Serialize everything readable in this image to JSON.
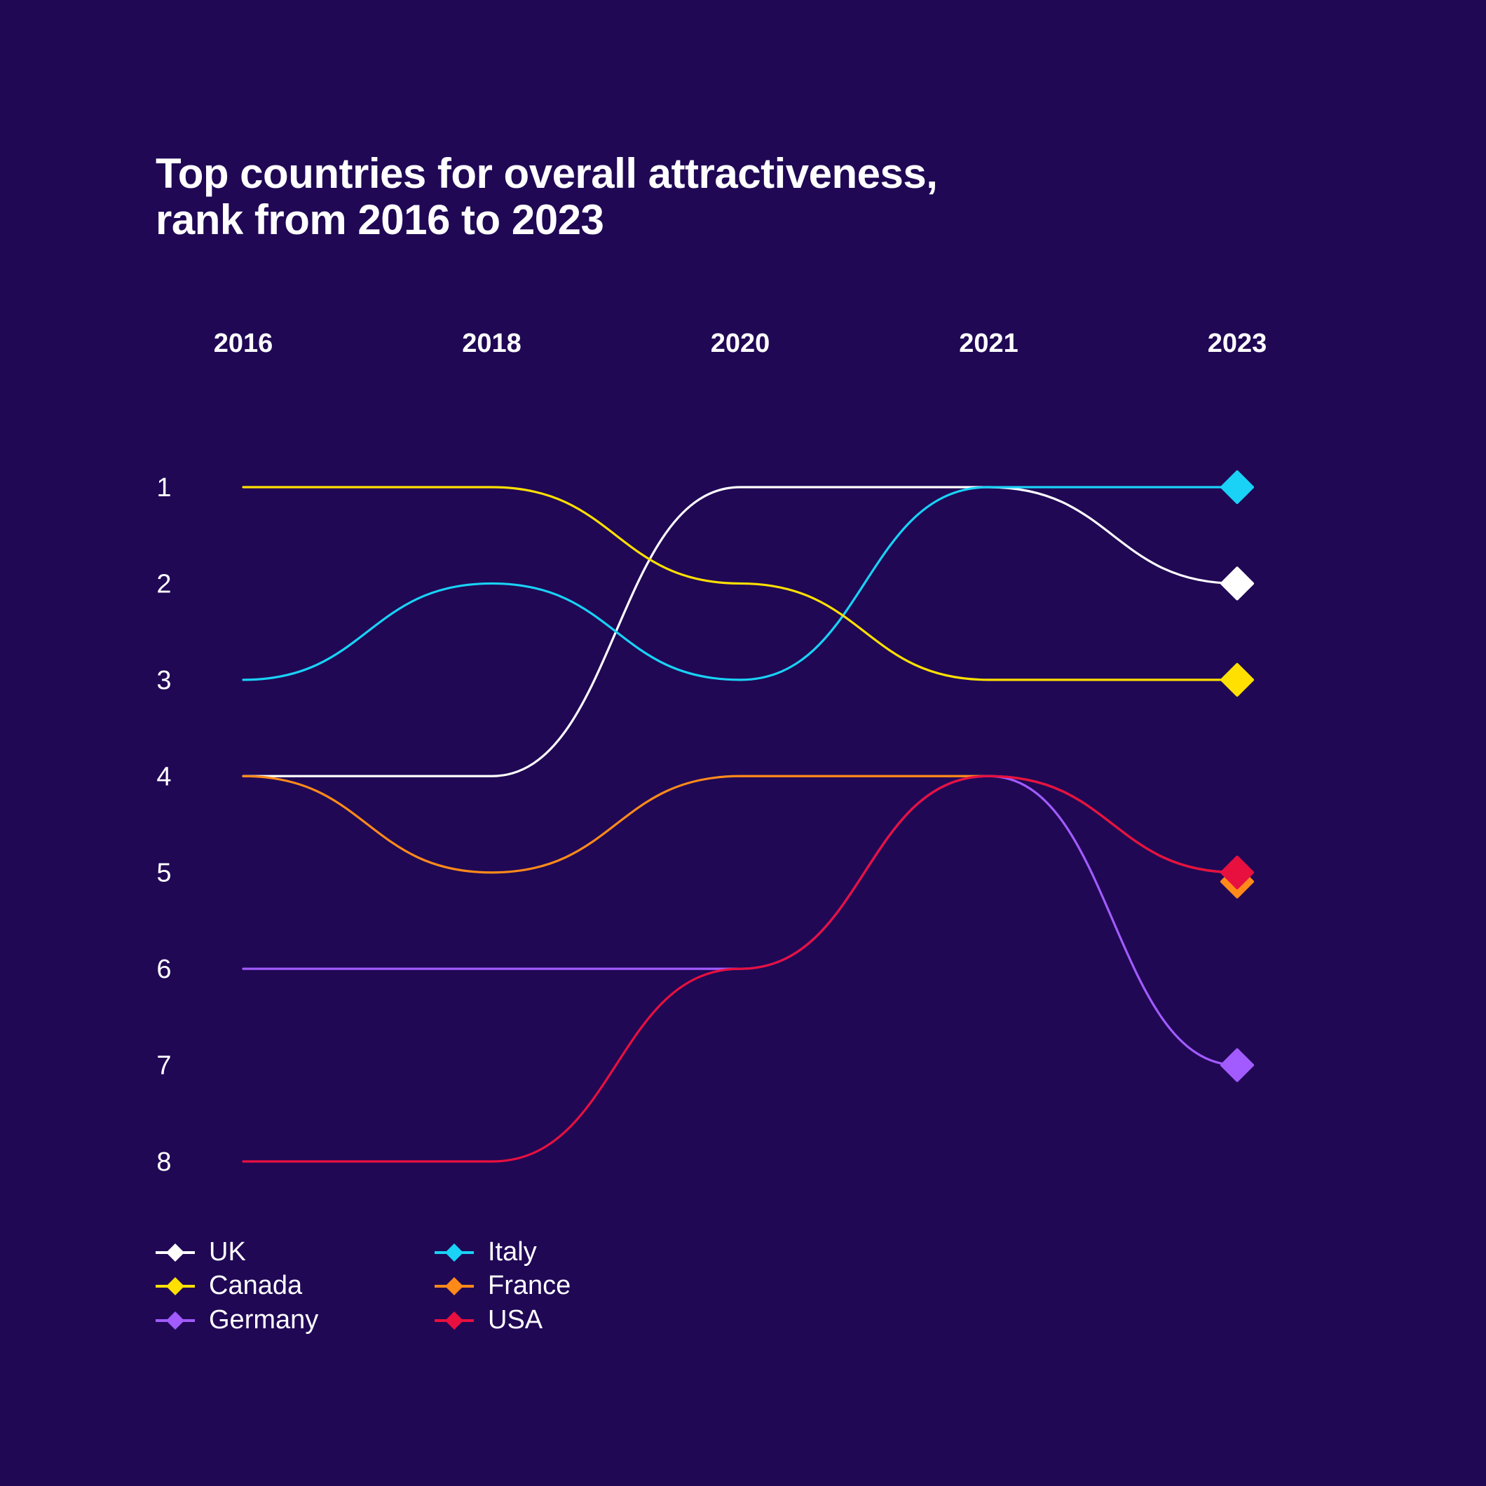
{
  "chart_data": {
    "type": "line",
    "subtype": "bump",
    "title_line1": "Top countries for overall attractiveness,",
    "title_line2": "rank from 2016 to 2023",
    "x": [
      "2016",
      "2018",
      "2020",
      "2021",
      "2023"
    ],
    "y_ticks": [
      "1",
      "2",
      "3",
      "4",
      "5",
      "6",
      "7",
      "8"
    ],
    "ylim": [
      1,
      8
    ],
    "y_inverted": true,
    "series": [
      {
        "name": "UK",
        "color": "#ffffff",
        "values": [
          4,
          4,
          1,
          1,
          2
        ]
      },
      {
        "name": "Italy",
        "color": "#19d2f5",
        "values": [
          3,
          2,
          3,
          1,
          1
        ]
      },
      {
        "name": "Canada",
        "color": "#ffe000",
        "values": [
          1,
          1,
          2,
          3,
          3
        ]
      },
      {
        "name": "France",
        "color": "#ff8a1a",
        "values": [
          4,
          5,
          4,
          4,
          5
        ]
      },
      {
        "name": "Germany",
        "color": "#a25bff",
        "values": [
          6,
          6,
          6,
          4,
          7
        ]
      },
      {
        "name": "USA",
        "color": "#e8103f",
        "values": [
          8,
          8,
          6,
          4,
          5
        ]
      }
    ],
    "legend": [
      "UK",
      "Canada",
      "Germany",
      "Italy",
      "France",
      "USA"
    ]
  }
}
